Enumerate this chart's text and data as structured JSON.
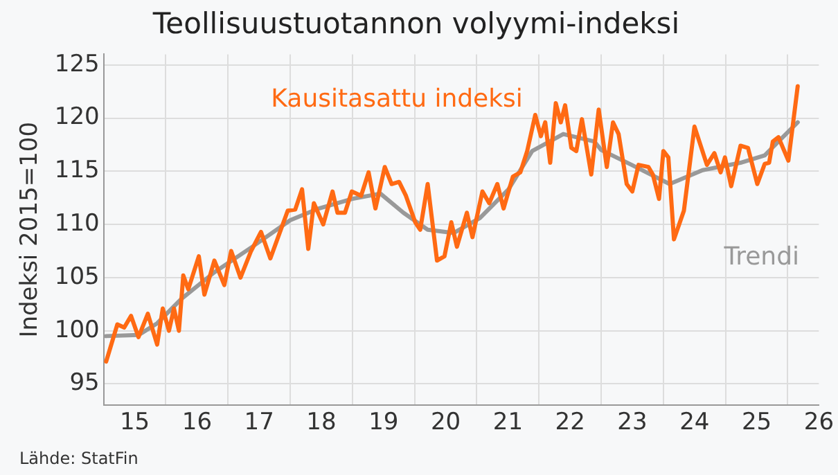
{
  "chart_data": {
    "type": "line",
    "title": "Teollisuustuotannon volyymi-indeksi",
    "ylabel": "Indeksi 2015=100",
    "annotations": [
      "Lähde: StatFin"
    ],
    "legend": false,
    "grid": true,
    "marker": "none",
    "line_style": "solid",
    "xlim": [
      14.5,
      26
    ],
    "xticks": [
      15,
      {
        "value": 15.5,
        "label": null
      },
      16,
      {
        "value": 16.5,
        "label": null
      },
      17,
      {
        "value": 17.5,
        "label": null
      },
      18,
      {
        "value": 18.5,
        "label": null
      },
      19,
      {
        "value": 19.5,
        "label": null
      },
      20,
      {
        "value": 20.5,
        "label": null
      },
      21,
      {
        "value": 21.5,
        "label": null
      },
      22,
      {
        "value": 22.5,
        "label": null
      },
      23,
      {
        "value": 23.5,
        "label": null
      },
      24,
      {
        "value": 24.5,
        "label": null
      },
      25,
      {
        "value": 25.5,
        "label": null
      },
      26
    ],
    "ylim": [
      93,
      126
    ],
    "yticks": [
      95,
      100,
      105,
      110,
      115,
      120,
      125
    ],
    "series": [
      {
        "name": "Kausitasattu indeksi",
        "color": "#ff6a13",
        "x": [
          14.54,
          14.72,
          14.83,
          14.94,
          15.06,
          15.21,
          15.36,
          15.45,
          15.55,
          15.63,
          15.71,
          15.78,
          15.86,
          16.03,
          16.12,
          16.28,
          16.44,
          16.55,
          16.7,
          16.87,
          17.03,
          17.18,
          17.46,
          17.58,
          17.69,
          17.79,
          17.88,
          18.03,
          18.18,
          18.26,
          18.38,
          18.49,
          18.64,
          18.76,
          18.87,
          19.02,
          19.13,
          19.25,
          19.36,
          19.51,
          19.59,
          19.71,
          19.86,
          19.98,
          20.09,
          20.18,
          20.34,
          20.43,
          20.59,
          20.7,
          20.83,
          20.93,
          21.08,
          21.2,
          21.31,
          21.44,
          21.53,
          21.6,
          21.68,
          21.77,
          21.85,
          21.92,
          22.02,
          22.1,
          22.19,
          22.34,
          22.46,
          22.59,
          22.69,
          22.78,
          22.91,
          23.0,
          23.1,
          23.26,
          23.33,
          23.43,
          23.5,
          23.58,
          23.67,
          23.83,
          24.0,
          24.2,
          24.32,
          24.42,
          24.49,
          24.59,
          24.74,
          24.86,
          25.01,
          25.13,
          25.2,
          25.26,
          25.35,
          25.51,
          25.66
        ],
        "values": [
          97.1,
          100.6,
          100.3,
          101.4,
          99.4,
          101.6,
          98.7,
          102.1,
          100.0,
          102.1,
          100.0,
          105.2,
          103.9,
          107.0,
          103.4,
          106.6,
          104.3,
          107.5,
          105.0,
          107.5,
          109.3,
          106.8,
          111.3,
          111.4,
          113.3,
          107.7,
          112.0,
          110.0,
          113.1,
          111.1,
          111.1,
          113.1,
          112.7,
          114.9,
          111.5,
          115.4,
          113.8,
          114.0,
          112.7,
          110.2,
          109.5,
          113.8,
          106.6,
          107.0,
          110.2,
          107.9,
          111.1,
          108.8,
          113.1,
          112.0,
          113.8,
          111.5,
          114.5,
          114.9,
          116.9,
          120.3,
          118.3,
          119.6,
          115.8,
          121.4,
          119.6,
          121.2,
          117.2,
          116.9,
          119.9,
          114.7,
          120.8,
          115.4,
          119.6,
          118.5,
          113.8,
          113.1,
          115.6,
          115.4,
          114.7,
          112.4,
          116.9,
          116.3,
          108.6,
          111.3,
          119.2,
          115.6,
          116.7,
          114.9,
          116.3,
          113.6,
          117.4,
          117.2,
          113.8,
          115.7,
          115.8,
          117.8,
          118.2,
          116.0,
          123.0
        ]
      },
      {
        "name": "Trendi",
        "color": "#999999",
        "x": [
          14.54,
          15.06,
          15.36,
          15.75,
          16.28,
          16.89,
          17.5,
          17.96,
          18.49,
          18.95,
          19.32,
          19.71,
          20.13,
          20.55,
          21.01,
          21.39,
          21.89,
          22.39,
          22.5,
          22.99,
          23.6,
          24.13,
          24.74,
          25.13,
          25.35,
          25.66
        ],
        "values": [
          99.5,
          99.6,
          100.7,
          103.0,
          105.5,
          107.9,
          110.4,
          111.5,
          112.4,
          112.9,
          111.1,
          109.5,
          109.2,
          110.6,
          113.3,
          116.9,
          118.5,
          117.8,
          117.0,
          115.6,
          113.8,
          115.1,
          115.8,
          116.5,
          117.8,
          119.6
        ]
      }
    ]
  }
}
